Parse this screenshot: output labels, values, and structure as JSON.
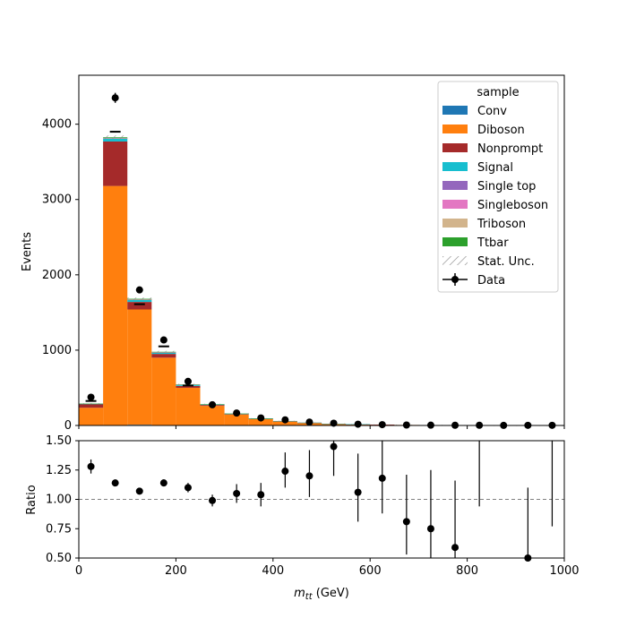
{
  "chart_data": [
    {
      "type": "bar",
      "stacked": true,
      "panel": "main",
      "xlim": [
        0,
        1000
      ],
      "ylim": [
        0,
        4650
      ],
      "ylabel": "Events",
      "yticks": [
        0,
        1000,
        2000,
        3000,
        4000
      ],
      "bin_edges": [
        0,
        50,
        100,
        150,
        200,
        250,
        300,
        350,
        400,
        450,
        500,
        550,
        600,
        650,
        700,
        750,
        800,
        850,
        900,
        950,
        1000
      ],
      "legend": {
        "title": "sample",
        "placement": "top-right",
        "entries": [
          "Conv",
          "Diboson",
          "Nonprompt",
          "Signal",
          "Single top",
          "Singleboson",
          "Triboson",
          "Ttbar",
          "Stat. Unc.",
          "Data"
        ]
      },
      "series": [
        {
          "name": "Conv",
          "color": "#1f77b4",
          "values": [
            0,
            0,
            10,
            0,
            0,
            0,
            0,
            0,
            0,
            0,
            0,
            0,
            0,
            0,
            0,
            0,
            0,
            0,
            0,
            0
          ]
        },
        {
          "name": "Diboson",
          "color": "#ff7f0e",
          "values": [
            235,
            3180,
            1530,
            900,
            500,
            260,
            145,
            85,
            55,
            35,
            22,
            15,
            10,
            7,
            5,
            4,
            3,
            2,
            2,
            1
          ]
        },
        {
          "name": "Nonprompt",
          "color": "#a52a2a",
          "values": [
            50,
            590,
            100,
            50,
            25,
            12,
            7,
            4,
            3,
            2,
            1,
            1,
            1,
            0,
            0,
            0,
            0,
            0,
            0,
            0
          ]
        },
        {
          "name": "Signal",
          "color": "#17becf",
          "values": [
            3,
            40,
            30,
            20,
            15,
            8,
            5,
            3,
            2,
            1,
            1,
            1,
            0,
            0,
            0,
            0,
            0,
            0,
            0,
            0
          ]
        },
        {
          "name": "Single top",
          "color": "#9467bd",
          "values": [
            0,
            2,
            2,
            1,
            1,
            0,
            0,
            0,
            0,
            0,
            0,
            0,
            0,
            0,
            0,
            0,
            0,
            0,
            0,
            0
          ]
        },
        {
          "name": "Singleboson",
          "color": "#e377c2",
          "values": [
            0,
            2,
            1,
            1,
            0,
            0,
            0,
            0,
            0,
            0,
            0,
            0,
            0,
            0,
            0,
            0,
            0,
            0,
            0,
            0
          ]
        },
        {
          "name": "Triboson",
          "color": "#d2b48c",
          "values": [
            0,
            2,
            1,
            1,
            0,
            0,
            0,
            0,
            0,
            0,
            0,
            0,
            0,
            0,
            0,
            0,
            0,
            0,
            0,
            0
          ]
        },
        {
          "name": "Ttbar",
          "color": "#2ca02c",
          "values": [
            2,
            10,
            8,
            5,
            3,
            2,
            1,
            1,
            0,
            0,
            0,
            0,
            0,
            0,
            0,
            0,
            0,
            0,
            0,
            0
          ]
        }
      ],
      "stat_unc_hatch": "////",
      "data": {
        "name": "Data",
        "x": [
          25,
          75,
          125,
          175,
          225,
          275,
          325,
          375,
          425,
          475,
          525,
          575,
          625,
          675,
          725,
          775,
          825,
          875,
          925,
          975
        ],
        "y": [
          375,
          4350,
          1800,
          1135,
          585,
          275,
          165,
          100,
          75,
          45,
          30,
          17,
          11,
          6,
          4,
          3,
          3,
          1,
          2,
          2
        ],
        "yerr": [
          19,
          66,
          42,
          34,
          24,
          17,
          13,
          10,
          9,
          7,
          5,
          4,
          3,
          2,
          2,
          2,
          2,
          1,
          1,
          1
        ]
      },
      "xerr_markers": [
        {
          "x": 25,
          "y": 325
        },
        {
          "x": 75,
          "y": 3900
        },
        {
          "x": 125,
          "y": 1610
        },
        {
          "x": 175,
          "y": 1050
        },
        {
          "x": 225,
          "y": 530
        }
      ]
    },
    {
      "type": "scatter",
      "panel": "ratio",
      "xlim": [
        0,
        1000
      ],
      "ylim": [
        0.5,
        1.5
      ],
      "xlabel": "m_tt (GeV)",
      "ylabel": "Ratio",
      "xticks": [
        0,
        200,
        400,
        600,
        800,
        1000
      ],
      "yticks": [
        0.5,
        0.75,
        1.0,
        1.25,
        1.5
      ],
      "ytick_labels": [
        "0.50",
        "0.75",
        "1.00",
        "1.25",
        "1.50"
      ],
      "reference_line": 1.0,
      "points": {
        "x": [
          25,
          75,
          125,
          175,
          225,
          275,
          325,
          375,
          425,
          475,
          525,
          575,
          625,
          675,
          725,
          775,
          825,
          875,
          925,
          975
        ],
        "y": [
          1.28,
          1.14,
          1.07,
          1.14,
          1.1,
          0.99,
          1.05,
          1.04,
          1.24,
          1.2,
          1.45,
          1.06,
          1.18,
          0.81,
          0.75,
          0.59,
          null,
          null,
          0.5,
          null
        ],
        "err_low": [
          0.06,
          0.02,
          0.02,
          0.03,
          0.04,
          0.05,
          0.08,
          0.1,
          0.14,
          0.18,
          0.25,
          0.25,
          0.3,
          0.28,
          0.3,
          0.2,
          null,
          null,
          0.3,
          null
        ],
        "err_high": [
          0.06,
          0.02,
          0.02,
          0.03,
          0.04,
          0.05,
          0.08,
          0.1,
          0.16,
          0.22,
          0.3,
          0.33,
          0.4,
          0.4,
          0.5,
          0.57,
          null,
          null,
          0.6,
          null
        ]
      },
      "error_only_bars": [
        {
          "x": 825,
          "low": 0.94,
          "high": 1.5
        },
        {
          "x": 975,
          "low": 0.77,
          "high": 1.5
        }
      ]
    }
  ]
}
